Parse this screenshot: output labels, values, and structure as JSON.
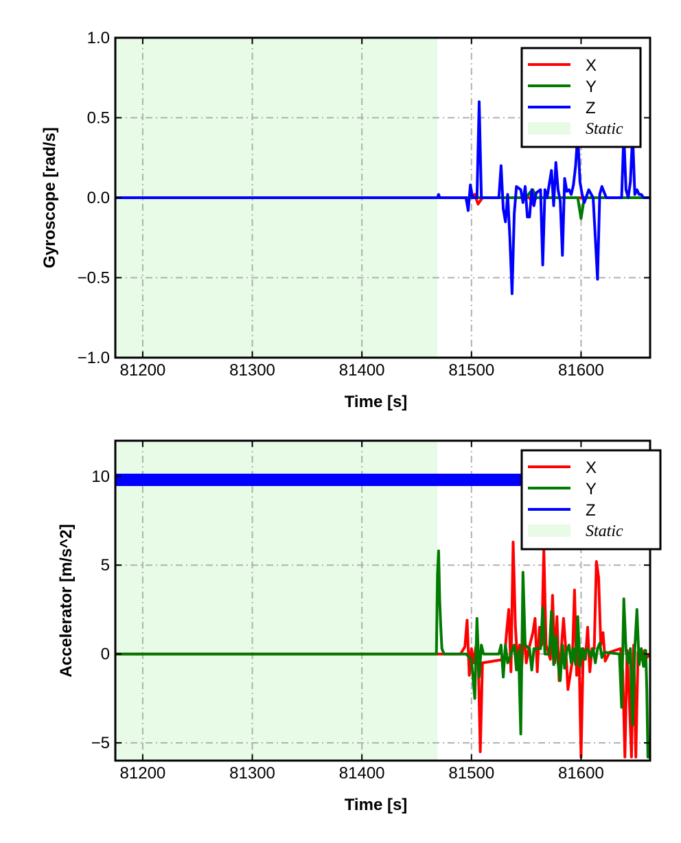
{
  "chart_data": [
    {
      "type": "line",
      "xlabel": "Time [s]",
      "ylabel": "Gyroscope [rad/s]",
      "xlim": [
        81175,
        81663
      ],
      "ylim": [
        -1.0,
        1.0
      ],
      "xticks": [
        81200,
        81300,
        81400,
        81500,
        81600
      ],
      "xtick_labels": [
        "81200",
        "81300",
        "81400",
        "81500",
        "81600"
      ],
      "yticks": [
        -1.0,
        -0.5,
        0.0,
        0.5,
        1.0
      ],
      "ytick_labels": [
        "−1.0",
        "−0.5",
        "0.0",
        "0.5",
        "1.0"
      ],
      "grid": true,
      "grid_style": "dash-dot",
      "legend_position": "top-right",
      "static_region": {
        "label": "Static",
        "x": [
          81175,
          81469
        ],
        "color": "#e8fbe6"
      },
      "series": [
        {
          "name": "X",
          "color": "#ff0000",
          "x": [
            81175,
            81469,
            81500,
            81503,
            81506,
            81510,
            81530,
            81553,
            81556,
            81559,
            81600,
            81620,
            81663
          ],
          "y": [
            0,
            0,
            0,
            0.02,
            -0.04,
            0,
            0,
            0,
            -0.04,
            0,
            0,
            0,
            0
          ]
        },
        {
          "name": "Y",
          "color": "#007a00",
          "x": [
            81175,
            81469,
            81550,
            81553,
            81556,
            81559,
            81597,
            81600,
            81603,
            81663
          ],
          "y": [
            0,
            0,
            0,
            0.03,
            0.05,
            0,
            0,
            -0.13,
            0,
            0
          ]
        },
        {
          "name": "Z",
          "color": "#0000ff",
          "x": [
            81175,
            81469,
            81470,
            81471,
            81495,
            81497,
            81499,
            81501,
            81505,
            81507,
            81509,
            81511,
            81525,
            81527,
            81529,
            81531,
            81533,
            81535,
            81537,
            81539,
            81541,
            81545,
            81547,
            81549,
            81551,
            81553,
            81555,
            81557,
            81559,
            81563,
            81565,
            81567,
            81569,
            81573,
            81575,
            81577,
            81579,
            81581,
            81583,
            81585,
            81587,
            81589,
            81591,
            81593,
            81595,
            81597,
            81599,
            81601,
            81603,
            81607,
            81611,
            81613,
            81615,
            81617,
            81619,
            81623,
            81637,
            81639,
            81641,
            81643,
            81645,
            81647,
            81649,
            81651,
            81653,
            81655,
            81657,
            81663
          ],
          "y": [
            0,
            0,
            0.02,
            0,
            0,
            -0.08,
            0.08,
            0,
            0,
            0.6,
            0,
            0,
            0,
            0.2,
            -0.07,
            -0.15,
            0.02,
            -0.25,
            -0.6,
            -0.1,
            0.07,
            0.05,
            -0.03,
            0.07,
            -0.12,
            -0.12,
            0.05,
            -0.05,
            0.03,
            0.05,
            -0.42,
            0.05,
            0,
            0.17,
            -0.05,
            0.22,
            0.05,
            -0.02,
            -0.36,
            0.12,
            0.04,
            0.05,
            0.02,
            0.08,
            0.2,
            0.4,
            0.1,
            0.02,
            -0.03,
            0.05,
            0,
            -0.25,
            -0.51,
            0.02,
            0.07,
            0,
            0,
            0.4,
            0.05,
            0,
            0.1,
            0.4,
            0.02,
            0.05,
            0.02,
            0.02,
            0,
            0
          ]
        }
      ]
    },
    {
      "type": "line",
      "xlabel": "Time [s]",
      "ylabel": "Accelerator [m/s^2]",
      "xlim": [
        81175,
        81663
      ],
      "ylim": [
        -6,
        12
      ],
      "xticks": [
        81200,
        81300,
        81400,
        81500,
        81600
      ],
      "xtick_labels": [
        "81200",
        "81300",
        "81400",
        "81500",
        "81600"
      ],
      "yticks": [
        -5,
        0,
        5,
        10
      ],
      "ytick_labels": [
        "−5",
        "0",
        "5",
        "10"
      ],
      "grid": true,
      "grid_style": "dash-dot",
      "legend_position": "top-right",
      "static_region": {
        "label": "Static",
        "x": [
          81175,
          81469
        ],
        "color": "#e8fbe6"
      },
      "series": [
        {
          "name": "X",
          "color": "#ff0000",
          "x": [
            81175,
            81469,
            81490,
            81494,
            81496,
            81498,
            81500,
            81502,
            81504,
            81506,
            81508,
            81510,
            81530,
            81532,
            81534,
            81536,
            81538,
            81540,
            81542,
            81544,
            81546,
            81548,
            81550,
            81552,
            81556,
            81558,
            81560,
            81562,
            81564,
            81566,
            81568,
            81572,
            81574,
            81576,
            81578,
            81580,
            81582,
            81584,
            81586,
            81588,
            81592,
            81594,
            81596,
            81598,
            81600,
            81602,
            81604,
            81606,
            81608,
            81610,
            81612,
            81614,
            81616,
            81618,
            81620,
            81622,
            81626,
            81636,
            81638,
            81640,
            81642,
            81644,
            81646,
            81648,
            81650,
            81652,
            81655,
            81658,
            81660,
            81663
          ],
          "y": [
            0,
            0,
            0,
            0.4,
            1.9,
            -1.2,
            0.3,
            -0.5,
            0.4,
            0.2,
            -5.5,
            -0.5,
            -0.3,
            1.2,
            2.5,
            -1.0,
            6.3,
            1.6,
            -0.4,
            0.5,
            -0.6,
            1.5,
            -0.5,
            0.2,
            1.2,
            2.0,
            -1.0,
            1.5,
            0.5,
            5.9,
            0.5,
            -0.3,
            3.3,
            -0.5,
            2.1,
            -1.5,
            0.3,
            2.0,
            0.3,
            -2.0,
            -0.4,
            3.6,
            -1.2,
            0.5,
            -5.8,
            0.3,
            -0.3,
            1.5,
            -1.0,
            0.3,
            0.3,
            5.2,
            4.3,
            0.5,
            1.2,
            -0.4,
            0.1,
            0.3,
            -1.0,
            -5.8,
            0.2,
            -2.5,
            -5.8,
            0.5,
            -5.8,
            0.1,
            -0.3,
            0.2,
            -0.2,
            0
          ]
        },
        {
          "name": "Y",
          "color": "#007a00",
          "x": [
            81175,
            81468,
            81469,
            81470,
            81471,
            81472,
            81473,
            81475,
            81480,
            81495,
            81500,
            81503,
            81505,
            81507,
            81509,
            81511,
            81525,
            81527,
            81529,
            81531,
            81533,
            81539,
            81541,
            81543,
            81545,
            81547,
            81549,
            81553,
            81555,
            81557,
            81563,
            81565,
            81567,
            81571,
            81573,
            81575,
            81577,
            81579,
            81581,
            81583,
            81585,
            81587,
            81589,
            81591,
            81593,
            81595,
            81597,
            81599,
            81601,
            81603,
            81605,
            81607,
            81609,
            81611,
            81613,
            81615,
            81617,
            81619,
            81621,
            81635,
            81637,
            81639,
            81641,
            81643,
            81645,
            81647,
            81649,
            81651,
            81653,
            81655,
            81657,
            81659,
            81660,
            81661,
            81663
          ],
          "y": [
            0,
            0,
            4.5,
            5.8,
            3.0,
            1.5,
            0.3,
            0,
            0,
            0,
            -0.3,
            -2.5,
            2.0,
            -1.3,
            0.5,
            0,
            0,
            0.5,
            -1.3,
            0.5,
            -0.5,
            0.5,
            -0.9,
            0.2,
            -4.5,
            4.6,
            0.5,
            0.3,
            -0.9,
            0.3,
            0.3,
            2.6,
            0,
            0,
            2.4,
            -0.6,
            1.0,
            -0.5,
            -1.5,
            0.5,
            -0.8,
            0.2,
            0.5,
            -0.5,
            0.3,
            -0.6,
            2.1,
            -0.7,
            0.3,
            -0.3,
            0.3,
            0.2,
            -0.2,
            0.3,
            -0.5,
            0.3,
            0.6,
            -0.2,
            0.1,
            0,
            -3.0,
            3.1,
            0.2,
            -0.5,
            0.3,
            -4.0,
            0.3,
            2.5,
            -0.6,
            0.3,
            -0.7,
            0.2,
            -2.0,
            -5.8,
            -5.8
          ]
        },
        {
          "name": "Z",
          "color": "#0000ff",
          "x": [
            81175,
            81663
          ],
          "y": [
            9.8,
            9.8
          ],
          "band": 0.35
        }
      ]
    }
  ]
}
